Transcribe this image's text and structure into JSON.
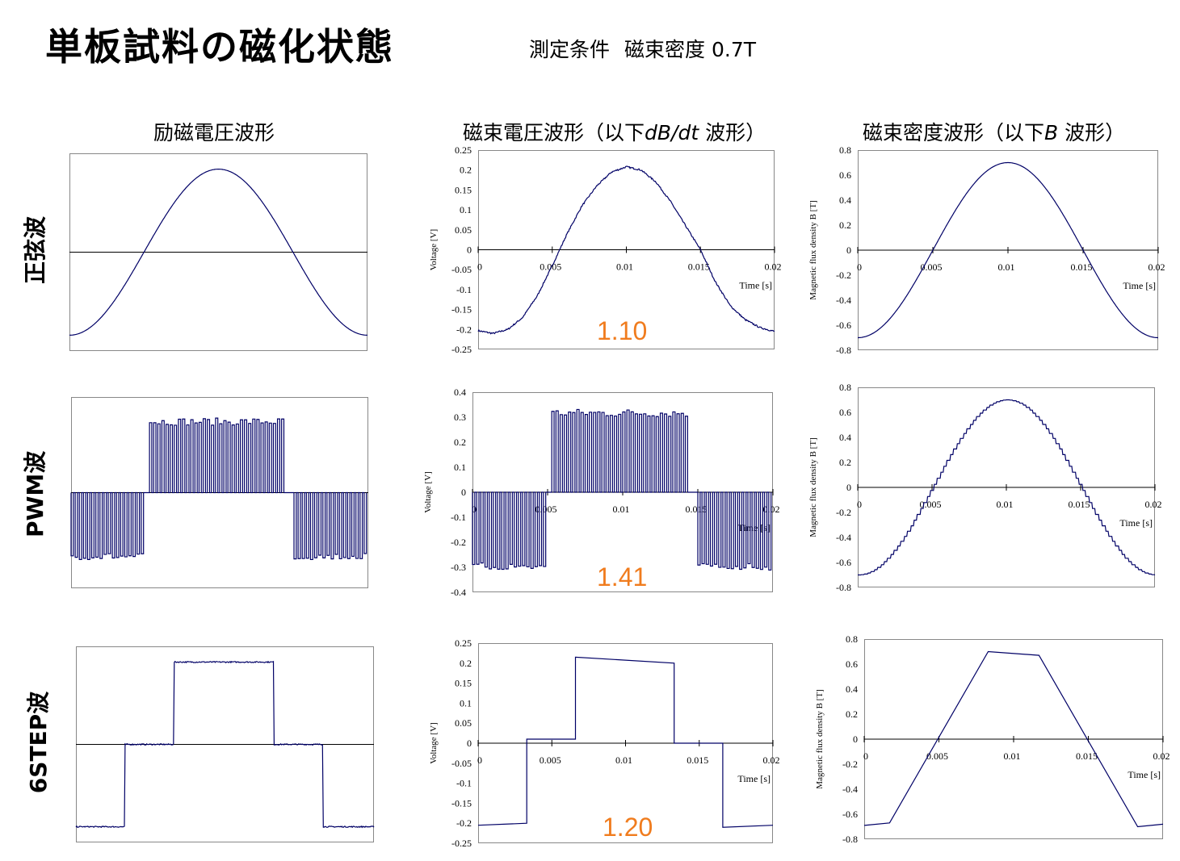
{
  "header": {
    "title": "単板試料の磁化状態",
    "condition_label": "測定条件",
    "condition_value": "磁束密度 0.7T"
  },
  "columns": {
    "excitation": "励磁電圧波形",
    "flux_voltage_prefix": "磁束電圧波形（以下",
    "flux_voltage_italic": "dB/dt",
    "flux_voltage_suffix": "波形）",
    "flux_density_prefix": "磁束密度波形（以下",
    "flux_density_italic": "B",
    "flux_density_suffix": "波形）"
  },
  "rows": [
    {
      "label": "正弦波",
      "ratio": "1.10"
    },
    {
      "label": "PWM波",
      "ratio": "1.41"
    },
    {
      "label": "6STEP波",
      "ratio": "1.20"
    }
  ],
  "colors": {
    "trace": "#000066",
    "ratio": "#f07c1e",
    "axis": "#000000"
  },
  "chart_data": [
    {
      "id": "sine-excitation",
      "type": "line",
      "waveform": "sine",
      "xlim": [
        0,
        0.02
      ],
      "ylim": [
        -0.25,
        0.25
      ],
      "axes_visible": false
    },
    {
      "id": "sine-dbdt",
      "type": "line",
      "waveform": "sine-distorted",
      "xlabel": "Time [s]",
      "ylabel": "Voltage [V]",
      "xlim": [
        0,
        0.02
      ],
      "ylim": [
        -0.25,
        0.25
      ],
      "xticks": [
        "0",
        "0.005",
        "0.01",
        "0.015",
        "0.02"
      ],
      "yticks": [
        "0.25",
        "0.2",
        "0.15",
        "0.1",
        "0.05",
        "0",
        "-0.05",
        "-0.1",
        "-0.15",
        "-0.2",
        "-0.25"
      ],
      "x": [
        0,
        0.001,
        0.002,
        0.003,
        0.004,
        0.005,
        0.006,
        0.007,
        0.008,
        0.009,
        0.01,
        0.011,
        0.012,
        0.013,
        0.014,
        0.015,
        0.016,
        0.017,
        0.018,
        0.019,
        0.02
      ],
      "y": [
        -0.203,
        -0.21,
        -0.2,
        -0.17,
        -0.115,
        -0.04,
        0.04,
        0.11,
        0.16,
        0.195,
        0.208,
        0.2,
        0.17,
        0.12,
        0.06,
        0.0,
        -0.08,
        -0.14,
        -0.175,
        -0.195,
        -0.205
      ]
    },
    {
      "id": "sine-b",
      "type": "line",
      "waveform": "sine",
      "xlabel": "Time [s]",
      "ylabel": "Magnetic flux density B [T]",
      "xlim": [
        0,
        0.02
      ],
      "ylim": [
        -0.8,
        0.8
      ],
      "xticks": [
        "0",
        "0.005",
        "0.01",
        "0.015",
        "0.02"
      ],
      "yticks": [
        "0.8",
        "0.6",
        "0.4",
        "0.2",
        "0",
        "-0.2",
        "-0.4",
        "-0.6",
        "-0.8"
      ],
      "amplitude": 0.7
    },
    {
      "id": "pwm-excitation",
      "type": "line",
      "waveform": "pwm",
      "xlim": [
        0,
        0.02
      ],
      "ylim": [
        -0.4,
        0.4
      ],
      "axes_visible": false
    },
    {
      "id": "pwm-dbdt",
      "type": "line",
      "waveform": "pwm",
      "xlabel": "Time [s]",
      "ylabel": "Voltage [V]",
      "xlim": [
        0,
        0.02
      ],
      "ylim": [
        -0.4,
        0.4
      ],
      "xticks": [
        "0",
        "0.005",
        "0.01",
        "0.015",
        "0.02"
      ],
      "yticks": [
        "0.4",
        "0.3",
        "0.2",
        "0.1",
        "0",
        "-0.1",
        "-0.2",
        "-0.3",
        "-0.4"
      ],
      "high_level": 0.32,
      "low_level": -0.3
    },
    {
      "id": "pwm-b",
      "type": "line",
      "waveform": "sine-stepped",
      "xlabel": "Time [s]",
      "ylabel": "Magnetic flux density B [T]",
      "xlim": [
        0,
        0.02
      ],
      "ylim": [
        -0.8,
        0.8
      ],
      "xticks": [
        "0",
        "0.005",
        "0.01",
        "0.015",
        "0.02"
      ],
      "yticks": [
        "0.8",
        "0.6",
        "0.4",
        "0.2",
        "0",
        "-0.2",
        "-0.4",
        "-0.6",
        "-0.8"
      ],
      "amplitude": 0.7
    },
    {
      "id": "6step-excitation",
      "type": "line",
      "waveform": "six-step",
      "xlim": [
        0,
        0.02
      ],
      "ylim": [
        -0.25,
        0.25
      ],
      "axes_visible": false
    },
    {
      "id": "6step-dbdt",
      "type": "line",
      "waveform": "six-step",
      "xlabel": "Time [s]",
      "ylabel": "Voltage [V]",
      "xlim": [
        0,
        0.02
      ],
      "ylim": [
        -0.25,
        0.25
      ],
      "xticks": [
        "0",
        "0.005",
        "0.01",
        "0.015",
        "0.02"
      ],
      "yticks": [
        "0.25",
        "0.2",
        "0.15",
        "0.1",
        "0.05",
        "0",
        "-0.05",
        "-0.1",
        "-0.15",
        "-0.2",
        "-0.25"
      ],
      "x": [
        0,
        0.0033,
        0.0033,
        0.0066,
        0.0066,
        0.0133,
        0.0133,
        0.0166,
        0.0166,
        0.02
      ],
      "y": [
        -0.205,
        -0.2,
        0.01,
        0.01,
        0.215,
        0.2,
        0.0,
        0.0,
        -0.21,
        -0.205
      ]
    },
    {
      "id": "6step-b",
      "type": "line",
      "waveform": "trapezoid",
      "xlabel": "Time [s]",
      "ylabel": "Magnetic flux density B [T]",
      "xlim": [
        0,
        0.02
      ],
      "ylim": [
        -0.8,
        0.8
      ],
      "xticks": [
        "0",
        "0.005",
        "0.01",
        "0.015",
        "0.02"
      ],
      "yticks": [
        "0.8",
        "0.6",
        "0.4",
        "0.2",
        "0",
        "-0.2",
        "-0.4",
        "-0.6",
        "-0.8"
      ],
      "x": [
        0,
        0.0017,
        0.0083,
        0.0117,
        0.0183,
        0.02
      ],
      "y": [
        -0.69,
        -0.67,
        0.7,
        0.67,
        -0.7,
        -0.68
      ]
    }
  ]
}
